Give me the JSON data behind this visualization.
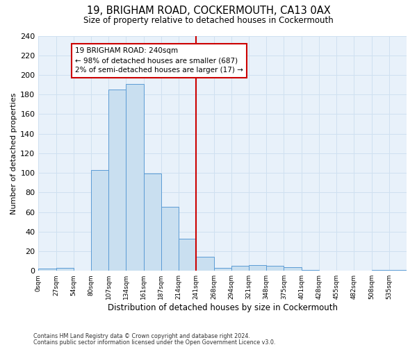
{
  "title": "19, BRIGHAM ROAD, COCKERMOUTH, CA13 0AX",
  "subtitle": "Size of property relative to detached houses in Cockermouth",
  "xlabel": "Distribution of detached houses by size in Cockermouth",
  "ylabel": "Number of detached properties",
  "bin_labels": [
    "0sqm",
    "27sqm",
    "54sqm",
    "80sqm",
    "107sqm",
    "134sqm",
    "161sqm",
    "187sqm",
    "214sqm",
    "241sqm",
    "268sqm",
    "294sqm",
    "321sqm",
    "348sqm",
    "375sqm",
    "401sqm",
    "428sqm",
    "455sqm",
    "482sqm",
    "508sqm",
    "535sqm"
  ],
  "bar_values": [
    2,
    3,
    0,
    103,
    185,
    191,
    99,
    65,
    33,
    14,
    3,
    5,
    6,
    5,
    4,
    1,
    0,
    0,
    0,
    1,
    1
  ],
  "bar_color": "#c9dff0",
  "bar_edge_color": "#5b9bd5",
  "grid_color": "#cfe0f0",
  "background_color": "#e8f1fa",
  "red_line_bin_index": 9,
  "annotation_text": "19 BRIGHAM ROAD: 240sqm\n← 98% of detached houses are smaller (687)\n2% of semi-detached houses are larger (17) →",
  "annotation_box_color": "#ffffff",
  "annotation_box_edge_color": "#cc0000",
  "footer_line1": "Contains HM Land Registry data © Crown copyright and database right 2024.",
  "footer_line2": "Contains public sector information licensed under the Open Government Licence v3.0.",
  "ylim": [
    0,
    240
  ],
  "yticks": [
    0,
    20,
    40,
    60,
    80,
    100,
    120,
    140,
    160,
    180,
    200,
    220,
    240
  ]
}
